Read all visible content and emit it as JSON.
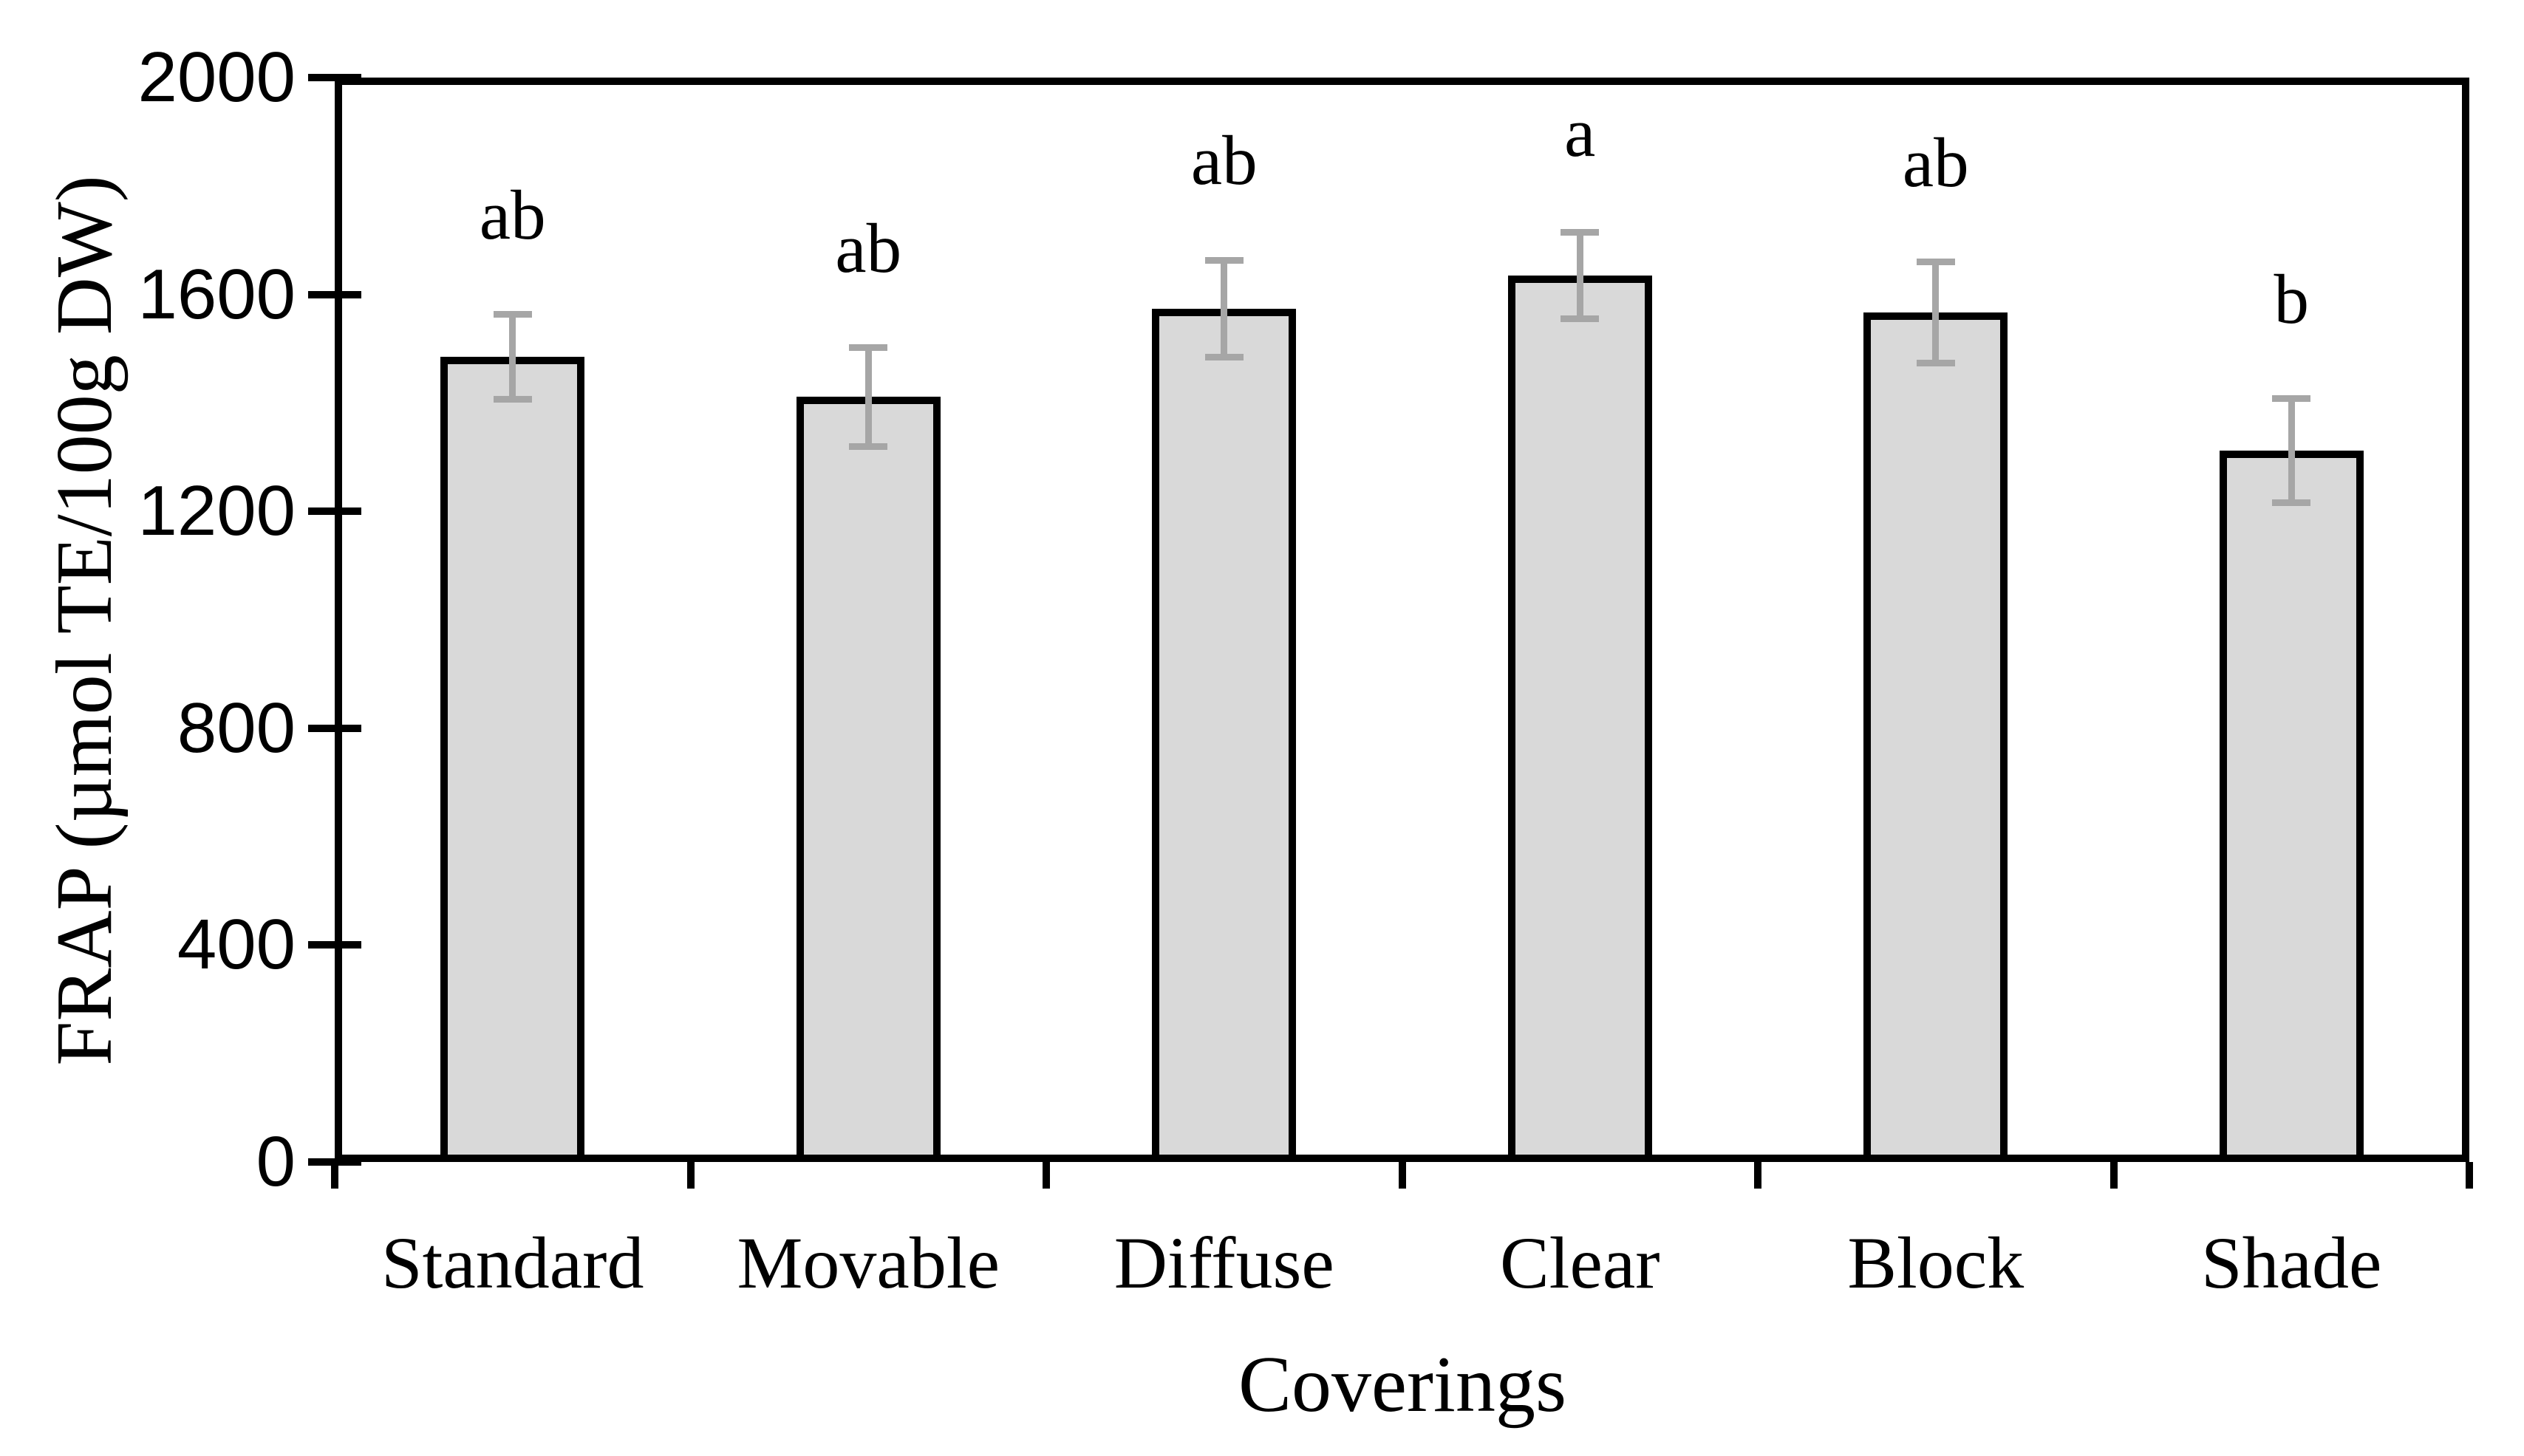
{
  "chart_data": {
    "type": "bar",
    "title": "",
    "categories": [
      "Standard",
      "Movable",
      "Diffuse",
      "Clear",
      "Block",
      "Shade"
    ],
    "values": [
      1485,
      1411,
      1574,
      1635,
      1567,
      1312
    ],
    "error_bars": [
      78,
      91,
      89,
      80,
      93,
      96
    ],
    "significance_letters": [
      "ab",
      "ab",
      "ab",
      "a",
      "ab",
      "b"
    ],
    "xlabel": "Coverings",
    "ylabel": "FRAP (µmol TE/100g DW)",
    "ylim": [
      0,
      2000
    ],
    "yticks": [
      0,
      400,
      800,
      1200,
      1600,
      2000
    ],
    "grid": false,
    "legend": false,
    "colors": {
      "bar_fill": "#d9d9d9",
      "bar_border": "#000000",
      "error_bar": "#a6a6a6",
      "axis": "#000000",
      "text": "#000000",
      "background": "#ffffff"
    }
  }
}
